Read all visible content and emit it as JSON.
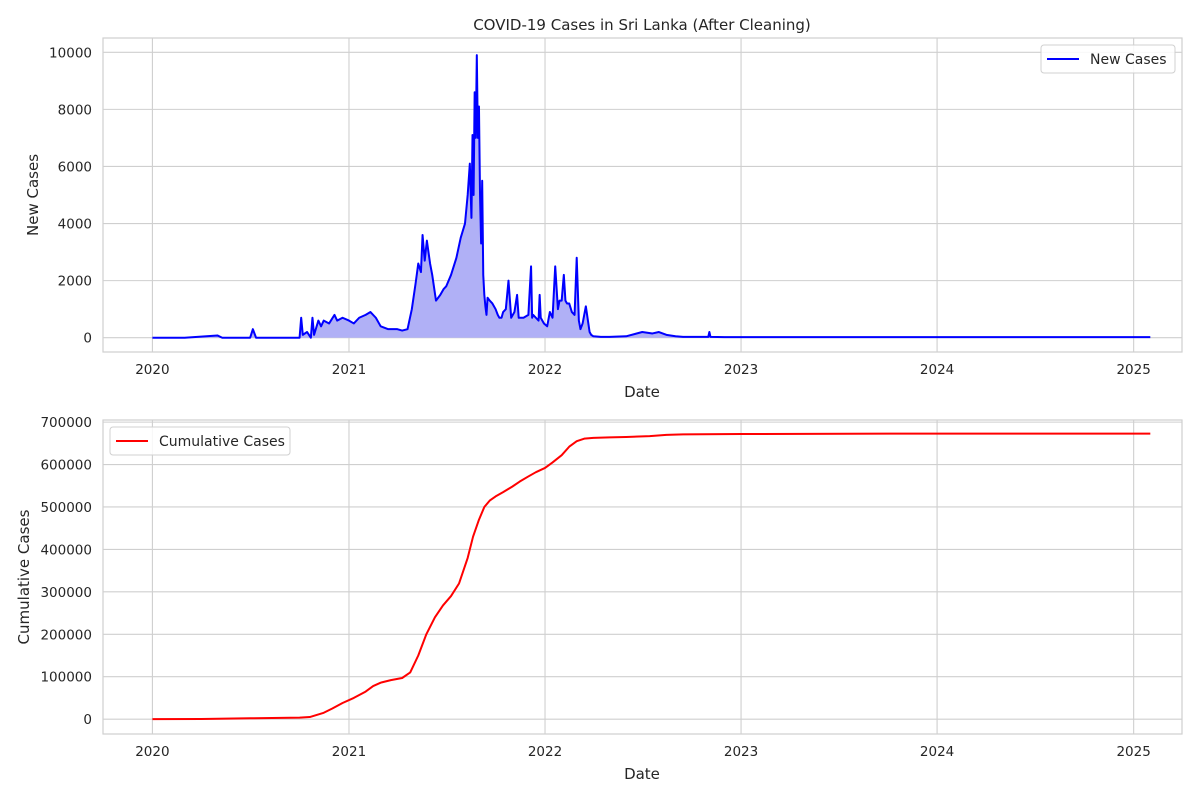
{
  "chart_data": [
    {
      "type": "area",
      "title": "COVID-19 Cases in Sri Lanka (After Cleaning)",
      "xlabel": "Date",
      "ylabel": "New Cases",
      "xlim": [
        "2019-10-01",
        "2025-04-01"
      ],
      "ylim": [
        -500,
        10500
      ],
      "x_ticks": [
        "2020",
        "2021",
        "2022",
        "2023",
        "2024",
        "2025"
      ],
      "y_ticks": [
        "0",
        "2000",
        "4000",
        "6000",
        "8000",
        "10000"
      ],
      "grid": true,
      "legend": {
        "position": "top-right",
        "entries": [
          "New Cases"
        ]
      },
      "series": [
        {
          "name": "New Cases",
          "color": "#0000ff",
          "fill": "#b0b0f6",
          "x": [
            "2020-01-01",
            "2020-03-01",
            "2020-05-01",
            "2020-05-10",
            "2020-05-20",
            "2020-07-01",
            "2020-07-06",
            "2020-07-12",
            "2020-09-01",
            "2020-10-01",
            "2020-10-04",
            "2020-10-07",
            "2020-10-15",
            "2020-10-22",
            "2020-10-25",
            "2020-10-28",
            "2020-11-05",
            "2020-11-10",
            "2020-11-15",
            "2020-11-25",
            "2020-12-05",
            "2020-12-10",
            "2020-12-20",
            "2021-01-01",
            "2021-01-10",
            "2021-01-20",
            "2021-02-01",
            "2021-02-10",
            "2021-02-20",
            "2021-03-01",
            "2021-03-15",
            "2021-04-01",
            "2021-04-10",
            "2021-04-20",
            "2021-04-28",
            "2021-05-05",
            "2021-05-10",
            "2021-05-15",
            "2021-05-18",
            "2021-05-22",
            "2021-05-26",
            "2021-06-01",
            "2021-06-05",
            "2021-06-12",
            "2021-06-20",
            "2021-06-26",
            "2021-07-01",
            "2021-07-10",
            "2021-07-20",
            "2021-07-28",
            "2021-08-05",
            "2021-08-10",
            "2021-08-14",
            "2021-08-17",
            "2021-08-19",
            "2021-08-21",
            "2021-08-23",
            "2021-08-25",
            "2021-08-27",
            "2021-08-29",
            "2021-08-31",
            "2021-09-02",
            "2021-09-04",
            "2021-09-06",
            "2021-09-08",
            "2021-09-10",
            "2021-09-12",
            "2021-09-14",
            "2021-09-16",
            "2021-09-20",
            "2021-09-25",
            "2021-10-01",
            "2021-10-05",
            "2021-10-08",
            "2021-10-12",
            "2021-10-15",
            "2021-10-20",
            "2021-10-25",
            "2021-10-30",
            "2021-11-05",
            "2021-11-10",
            "2021-11-13",
            "2021-11-16",
            "2021-11-22",
            "2021-12-01",
            "2021-12-06",
            "2021-12-08",
            "2021-12-10",
            "2021-12-15",
            "2021-12-20",
            "2021-12-22",
            "2021-12-24",
            "2021-12-30",
            "2022-01-05",
            "2022-01-10",
            "2022-01-15",
            "2022-01-20",
            "2022-01-25",
            "2022-01-28",
            "2022-02-01",
            "2022-02-05",
            "2022-02-08",
            "2022-02-11",
            "2022-02-15",
            "2022-02-20",
            "2022-02-25",
            "2022-03-01",
            "2022-03-05",
            "2022-03-08",
            "2022-03-12",
            "2022-03-18",
            "2022-03-25",
            "2022-03-28",
            "2022-04-01",
            "2022-04-15",
            "2022-05-01",
            "2022-06-01",
            "2022-07-01",
            "2022-07-20",
            "2022-08-01",
            "2022-08-15",
            "2022-09-01",
            "2022-09-15",
            "2022-10-01",
            "2022-11-01",
            "2022-11-03",
            "2022-11-05",
            "2022-12-01",
            "2023-01-01",
            "2023-06-01",
            "2023-07-01",
            "2024-01-01",
            "2025-01-01",
            "2025-02-01"
          ],
          "y": [
            0,
            0,
            80,
            0,
            0,
            0,
            300,
            0,
            0,
            0,
            700,
            100,
            200,
            0,
            700,
            100,
            600,
            400,
            600,
            500,
            800,
            600,
            700,
            600,
            500,
            700,
            800,
            900,
            700,
            400,
            300,
            300,
            250,
            300,
            1000,
            1900,
            2600,
            2300,
            3600,
            2700,
            3400,
            2600,
            2200,
            1300,
            1500,
            1700,
            1800,
            2200,
            2800,
            3500,
            4000,
            5000,
            6100,
            4200,
            7100,
            5000,
            8600,
            7000,
            9900,
            7000,
            8100,
            5000,
            3300,
            5500,
            2200,
            1500,
            1100,
            800,
            1400,
            1300,
            1200,
            1000,
            800,
            700,
            700,
            900,
            1000,
            2000,
            700,
            900,
            1500,
            700,
            700,
            700,
            800,
            2500,
            700,
            800,
            700,
            600,
            1500,
            700,
            500,
            400,
            900,
            700,
            2500,
            1000,
            1300,
            1300,
            2200,
            1300,
            1200,
            1200,
            900,
            800,
            2800,
            600,
            300,
            500,
            1100,
            200,
            100,
            50,
            30,
            30,
            50,
            200,
            150,
            200,
            100,
            50,
            30,
            30,
            30,
            200,
            30,
            20,
            20,
            20,
            20,
            20,
            20,
            20
          ]
        }
      ]
    },
    {
      "type": "line",
      "title": "",
      "xlabel": "Date",
      "ylabel": "Cumulative Cases",
      "xlim": [
        "2019-10-01",
        "2025-04-01"
      ],
      "ylim": [
        -35000,
        705000
      ],
      "x_ticks": [
        "2020",
        "2021",
        "2022",
        "2023",
        "2024",
        "2025"
      ],
      "y_ticks": [
        "0",
        "100000",
        "200000",
        "300000",
        "400000",
        "500000",
        "600000",
        "700000"
      ],
      "grid": true,
      "legend": {
        "position": "top-left",
        "entries": [
          "Cumulative Cases"
        ]
      },
      "series": [
        {
          "name": "Cumulative Cases",
          "color": "#ff0000",
          "x": [
            "2020-01-01",
            "2020-04-01",
            "2020-07-01",
            "2020-10-01",
            "2020-10-20",
            "2020-11-15",
            "2020-12-01",
            "2020-12-20",
            "2021-01-10",
            "2021-02-01",
            "2021-02-15",
            "2021-03-01",
            "2021-03-20",
            "2021-04-10",
            "2021-04-25",
            "2021-05-10",
            "2021-05-25",
            "2021-06-10",
            "2021-06-25",
            "2021-07-10",
            "2021-07-25",
            "2021-08-10",
            "2021-08-20",
            "2021-08-31",
            "2021-09-10",
            "2021-09-20",
            "2021-10-01",
            "2021-10-15",
            "2021-11-01",
            "2021-11-15",
            "2021-12-01",
            "2021-12-15",
            "2022-01-01",
            "2022-01-15",
            "2022-02-01",
            "2022-02-15",
            "2022-03-01",
            "2022-03-15",
            "2022-04-01",
            "2022-05-01",
            "2022-06-01",
            "2022-07-15",
            "2022-08-15",
            "2022-09-15",
            "2023-01-01",
            "2024-01-01",
            "2025-02-01"
          ],
          "y": [
            0,
            500,
            2000,
            3500,
            5000,
            15000,
            25000,
            38000,
            50000,
            65000,
            78000,
            86000,
            92000,
            97000,
            110000,
            150000,
            200000,
            240000,
            268000,
            290000,
            320000,
            380000,
            430000,
            470000,
            500000,
            515000,
            525000,
            535000,
            548000,
            560000,
            572000,
            582000,
            592000,
            605000,
            622000,
            642000,
            655000,
            661000,
            663000,
            664000,
            665000,
            667000,
            670000,
            671000,
            672000,
            673000,
            673000
          ]
        }
      ]
    }
  ]
}
